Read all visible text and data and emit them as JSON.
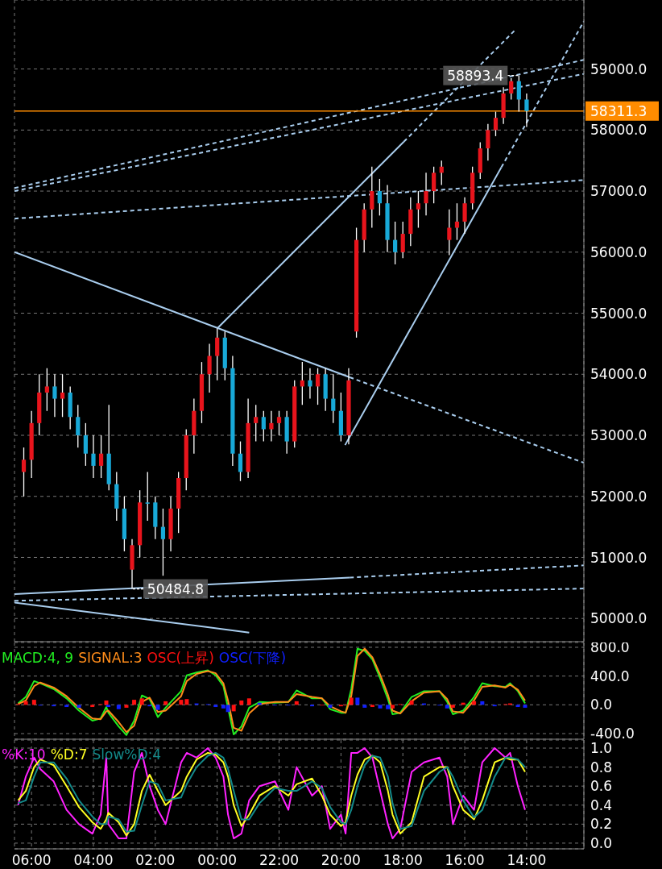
{
  "chart_data": [
    {
      "type": "candlestick",
      "x": [
        "--01-02T06:15",
        "--01-02T06:00",
        "--01-02T05:45",
        "--01-02T05:30",
        "--01-02T05:15",
        "--01-02T05:00",
        "--01-02T04:45",
        "--01-02T04:30",
        "--01-02T04:15",
        "--01-02T04:00",
        "--01-02T03:45",
        "--01-02T03:30",
        "--01-02T03:15",
        "--01-02T03:00",
        "--01-02T02:45",
        "--01-02T02:30",
        "--01-02T02:15",
        "--01-02T02:00",
        "--01-02T01:45",
        "--01-02T01:30",
        "--01-02T01:15",
        "--01-02T01:00",
        "--01-02T00:45",
        "--01-02T00:30",
        "--01-02T00:15",
        "--01-02T00:00",
        "--01-01T23:45",
        "--01-01T23:30",
        "--01-01T23:15",
        "--01-01T23:00",
        "--01-01T22:45",
        "--01-01T22:30",
        "--01-01T22:15",
        "--01-01T22:00",
        "--01-01T21:45",
        "--01-01T21:30",
        "--01-01T21:15",
        "--01-01T21:00",
        "--01-01T20:45",
        "--01-01T20:30",
        "--01-01T20:15",
        "--01-01T20:00",
        "--01-01T19:45",
        "--01-01T19:30",
        "--01-01T19:15",
        "--01-01T19:00",
        "--01-01T18:45",
        "--01-01T18:30",
        "--01-01T18:15",
        "--01-01T18:00",
        "--01-01T17:45",
        "--01-01T17:30",
        "--01-01T17:15",
        "--01-01T17:00",
        "--01-01T16:45",
        "--01-01T16:30",
        "--01-01T16:15",
        "--01-01T16:00",
        "--01-01T15:45",
        "--01-01T15:30",
        "--01-01T15:15",
        "--01-01T15:00",
        "--01-01T14:45",
        "--01-01T14:30",
        "--01-01T14:15",
        "--01-01T14:00"
      ],
      "ohlc": [
        [
          52400,
          52800,
          52000,
          52600
        ],
        [
          52600,
          53400,
          52300,
          53200
        ],
        [
          53200,
          54000,
          53000,
          53700
        ],
        [
          53700,
          54100,
          53400,
          53800
        ],
        [
          53800,
          54000,
          53300,
          53600
        ],
        [
          53600,
          54000,
          53300,
          53700
        ],
        [
          53700,
          53800,
          53100,
          53300
        ],
        [
          53300,
          53500,
          52800,
          53000
        ],
        [
          53000,
          53200,
          52500,
          52700
        ],
        [
          52700,
          53000,
          52300,
          52500
        ],
        [
          52500,
          53000,
          52300,
          52700
        ],
        [
          52700,
          53500,
          52100,
          52200
        ],
        [
          52200,
          52400,
          51600,
          51800
        ],
        [
          51800,
          52000,
          51100,
          51300
        ],
        [
          50800,
          51300,
          50484.8,
          51200
        ],
        [
          51200,
          52100,
          51000,
          51900
        ],
        [
          51900,
          52400,
          51600,
          51900
        ],
        [
          51900,
          52000,
          51300,
          51500
        ],
        [
          51500,
          51800,
          50700,
          51300
        ],
        [
          51300,
          52000,
          51100,
          51800
        ],
        [
          51800,
          52400,
          51400,
          52300
        ],
        [
          52300,
          53100,
          52100,
          53000
        ],
        [
          53000,
          53600,
          52700,
          53400
        ],
        [
          53400,
          54200,
          53200,
          54000
        ],
        [
          54000,
          54500,
          53700,
          54300
        ],
        [
          54300,
          54750,
          53900,
          54600
        ],
        [
          54600,
          54700,
          53900,
          54100
        ],
        [
          54100,
          54300,
          52500,
          52700
        ],
        [
          52700,
          52900,
          52250,
          52400
        ],
        [
          52400,
          53600,
          52300,
          53200
        ],
        [
          53200,
          53500,
          52900,
          53300
        ],
        [
          53300,
          53400,
          52900,
          53100
        ],
        [
          53100,
          53400,
          52900,
          53200
        ],
        [
          53200,
          53400,
          53000,
          53300
        ],
        [
          53300,
          53400,
          52700,
          52900
        ],
        [
          52900,
          53900,
          52800,
          53800
        ],
        [
          53800,
          54200,
          53500,
          53900
        ],
        [
          53900,
          54100,
          53600,
          53800
        ],
        [
          53800,
          54100,
          53500,
          54000
        ],
        [
          54000,
          54100,
          53400,
          53600
        ],
        [
          53600,
          54000,
          53200,
          53400
        ],
        [
          53400,
          53700,
          52900,
          53000
        ],
        [
          53000,
          54100,
          52850,
          53900
        ],
        [
          54700,
          56400,
          54600,
          56200
        ],
        [
          56200,
          56800,
          56000,
          56700
        ],
        [
          56700,
          57400,
          56400,
          57000
        ],
        [
          57000,
          57200,
          56600,
          56800
        ],
        [
          56800,
          57100,
          56000,
          56200
        ],
        [
          56200,
          56500,
          55800,
          56000
        ],
        [
          56000,
          56500,
          55900,
          56300
        ],
        [
          56300,
          56900,
          56100,
          56700
        ],
        [
          56700,
          57000,
          56400,
          56800
        ],
        [
          56800,
          57300,
          56600,
          57000
        ],
        [
          57000,
          57400,
          56800,
          57300
        ],
        [
          57300,
          57500,
          57100,
          57400
        ],
        [
          56200,
          56700,
          55950,
          56400
        ],
        [
          56400,
          56800,
          56200,
          56500
        ],
        [
          56500,
          56900,
          56300,
          56800
        ],
        [
          56800,
          57400,
          56700,
          57300
        ],
        [
          57300,
          57800,
          57200,
          57700
        ],
        [
          57700,
          58100,
          57500,
          58000
        ],
        [
          58000,
          58300,
          57900,
          58200
        ],
        [
          58200,
          58700,
          58100,
          58600
        ],
        [
          58600,
          58850,
          58500,
          58800
        ],
        [
          58800,
          58893.4,
          58300,
          58500
        ],
        [
          58500,
          58600,
          58050,
          58311.3
        ]
      ],
      "colors": [
        "#e8141c",
        "#e8141c",
        "#e8141c",
        "#e8141c",
        "#18a9d8",
        "#e8141c",
        "#18a9d8",
        "#18a9d8",
        "#18a9d8",
        "#18a9d8",
        "#e8141c",
        "#18a9d8",
        "#18a9d8",
        "#18a9d8",
        "#e8141c",
        "#e8141c",
        "#18a9d8",
        "#18a9d8",
        "#18a9d8",
        "#e8141c",
        "#e8141c",
        "#e8141c",
        "#e8141c",
        "#e8141c",
        "#e8141c",
        "#e8141c",
        "#18a9d8",
        "#18a9d8",
        "#18a9d8",
        "#e8141c",
        "#e8141c",
        "#18a9d8",
        "#e8141c",
        "#e8141c",
        "#18a9d8",
        "#e8141c",
        "#e8141c",
        "#18a9d8",
        "#e8141c",
        "#18a9d8",
        "#18a9d8",
        "#18a9d8",
        "#e8141c",
        "#e8141c",
        "#e8141c",
        "#e8141c",
        "#18a9d8",
        "#18a9d8",
        "#18a9d8",
        "#e8141c",
        "#e8141c",
        "#e8141c",
        "#e8141c",
        "#e8141c",
        "#e8141c",
        "#e8141c",
        "#e8141c",
        "#e8141c",
        "#e8141c",
        "#e8141c",
        "#e8141c",
        "#e8141c",
        "#e8141c",
        "#e8141c",
        "#18a9d8",
        "#18a9d8"
      ],
      "series": [
        {
          "type": "line",
          "color": "#a9cdee",
          "line_style": "solid",
          "x": [
            "--01-02T06:33",
            "--01-01T19:43"
          ],
          "values": [
            56000,
            53950
          ]
        },
        {
          "type": "line",
          "color": "#a9cdee",
          "line_style": "dashed",
          "x": [
            "--01-01T19:43",
            "--01-01T12:09"
          ],
          "values": [
            53950,
            52550
          ]
        },
        {
          "type": "line",
          "color": "#a9cdee",
          "line_style": "solid",
          "x": [
            "--01-02T00:00",
            "--01-01T17:58"
          ],
          "values": [
            54750,
            57810
          ]
        },
        {
          "type": "line",
          "color": "#a9cdee",
          "line_style": "dashed",
          "x": [
            "--01-01T17:58",
            "--01-01T14:21"
          ],
          "values": [
            57810,
            59650
          ]
        },
        {
          "type": "line",
          "color": "#a9cdee",
          "line_style": "solid",
          "x": [
            "--01-01T19:52",
            "--01-01T14:49"
          ],
          "values": [
            52840,
            57390
          ]
        },
        {
          "type": "line",
          "color": "#a9cdee",
          "line_style": "dashed",
          "x": [
            "--01-01T14:49",
            "--01-01T12:09"
          ],
          "values": [
            57390,
            59780
          ]
        },
        {
          "type": "line",
          "color": "#a9cdee",
          "line_style": "dashed",
          "x": [
            "--01-02T06:33",
            "--01-01T12:09"
          ],
          "values": [
            56550,
            57180
          ]
        },
        {
          "type": "line",
          "color": "#a9cdee",
          "line_style": "dashed",
          "x": [
            "--01-02T06:33",
            "--01-01T12:09"
          ],
          "values": [
            57050,
            59150
          ]
        },
        {
          "type": "line",
          "color": "#a9cdee",
          "line_style": "dashed",
          "x": [
            "--01-02T06:33",
            "--01-01T12:09"
          ],
          "values": [
            57000,
            58920
          ]
        },
        {
          "type": "line",
          "color": "#a9cdee",
          "line_style": "solid",
          "x": [
            "--01-02T06:33",
            "--01-01T19:43"
          ],
          "values": [
            50400,
            50670
          ]
        },
        {
          "type": "line",
          "color": "#a9cdee",
          "line_style": "dashed",
          "x": [
            "--01-01T19:43",
            "--01-01T12:09"
          ],
          "values": [
            50670,
            50870
          ]
        },
        {
          "type": "line",
          "color": "#a9cdee",
          "line_style": "dashed",
          "x": [
            "--01-02T06:33",
            "--01-01T12:09"
          ],
          "values": [
            50290,
            50490
          ]
        },
        {
          "type": "line",
          "color": "#a9cdee",
          "line_style": "solid",
          "x": [
            "--01-02T06:33",
            "--01-01T22:58"
          ],
          "values": [
            50260,
            49770
          ]
        }
      ],
      "ref_lines": [
        {
          "axis": "y",
          "value": 58311.3,
          "label": "58311.3",
          "color": "#ff8c00"
        }
      ],
      "annotations": [
        {
          "text": "58893.4",
          "x": "--01-01T14:15",
          "y": 58893.4
        },
        {
          "text": "50484.8",
          "x": "--01-02T02:45",
          "y": 50484.8
        }
      ],
      "xlim": [
        "--01-02T06:33",
        "--01-01T12:09"
      ],
      "xticks": [
        {
          "value": "--01-02T06:00",
          "label": null
        },
        {
          "value": "--01-02T04:00",
          "label": null
        },
        {
          "value": "--01-02T02:00",
          "label": null
        },
        {
          "value": "--01-02T00:00",
          "label": null
        },
        {
          "value": "--01-01T22:00",
          "label": null
        },
        {
          "value": "--01-01T20:00",
          "label": null
        },
        {
          "value": "--01-01T18:00",
          "label": null
        },
        {
          "value": "--01-01T16:00",
          "label": null
        },
        {
          "value": "--01-01T14:00",
          "label": null
        }
      ],
      "ylim": [
        49620,
        60130
      ],
      "yticks": [
        {
          "value": 50000,
          "label": "50000.0"
        },
        {
          "value": 51000,
          "label": "51000.0"
        },
        {
          "value": 52000,
          "label": "52000.0"
        },
        {
          "value": 53000,
          "label": "53000.0"
        },
        {
          "value": 54000,
          "label": "54000.0"
        },
        {
          "value": 55000,
          "label": "55000.0"
        },
        {
          "value": 56000,
          "label": "56000.0"
        },
        {
          "value": 57000,
          "label": "57000.0"
        },
        {
          "value": 58000,
          "label": "58000.0"
        },
        {
          "value": 59000,
          "label": "59000.0"
        }
      ],
      "grid": true,
      "tick_labels": "y"
    },
    {
      "type": "line",
      "x": [
        "--01-02T06:26",
        "--01-02T06:11",
        "--01-02T05:55",
        "--01-02T05:43",
        "--01-02T05:17",
        "--01-02T04:52",
        "--01-02T04:28",
        "--01-02T04:02",
        "--01-02T03:46",
        "--01-02T03:35",
        "--01-02T03:31",
        "--01-02T03:11",
        "--01-02T02:56",
        "--01-02T02:41",
        "--01-02T02:26",
        "--01-02T02:11",
        "--01-02T01:55",
        "--01-02T01:40",
        "--01-02T01:10",
        "--01-02T00:59",
        "--01-02T00:40",
        "--01-02T00:18",
        "--01-02T00:03",
        "--01-01T23:48",
        "--01-01T23:39",
        "--01-01T23:28",
        "--01-01T23:13",
        "--01-01T22:58",
        "--01-01T22:38",
        "--01-01T22:08",
        "--01-01T21:42",
        "--01-01T21:26",
        "--01-01T20:56",
        "--01-01T20:37",
        "--01-01T20:21",
        "--01-01T20:00",
        "--01-01T19:51",
        "--01-01T19:40",
        "--01-01T19:28",
        "--01-01T19:14",
        "--01-01T18:59",
        "--01-01T18:44",
        "--01-01T18:29",
        "--01-01T18:20",
        "--01-01T18:05",
        "--01-01T17:43",
        "--01-01T17:19",
        "--01-01T16:49",
        "--01-01T16:34",
        "--01-01T16:23",
        "--01-01T16:03",
        "--01-01T15:42",
        "--01-01T15:26",
        "--01-01T15:02",
        "--01-01T14:41",
        "--01-01T14:32",
        "--01-01T14:17",
        "--01-01T14:03"
      ],
      "series": [
        {
          "name": "MACD:4, 9",
          "color": "#22ee22",
          "values": [
            20,
            110,
            330,
            300,
            220,
            90,
            -80,
            -220,
            -190,
            -30,
            -110,
            -300,
            -420,
            -220,
            130,
            80,
            -170,
            -40,
            190,
            410,
            450,
            480,
            410,
            260,
            -40,
            -410,
            -300,
            -40,
            40,
            30,
            40,
            200,
            90,
            90,
            -60,
            -110,
            -110,
            220,
            780,
            750,
            630,
            370,
            80,
            -130,
            -110,
            110,
            190,
            190,
            40,
            -130,
            -80,
            110,
            300,
            260,
            250,
            300,
            190,
            20
          ]
        },
        {
          "name": "SIGNAL:3",
          "color": "#ff8c1a",
          "values": [
            10,
            60,
            260,
            310,
            240,
            120,
            -40,
            -190,
            -200,
            -90,
            -80,
            -240,
            -380,
            -290,
            40,
            100,
            -100,
            -80,
            120,
            330,
            430,
            470,
            440,
            300,
            60,
            -320,
            -360,
            -120,
            10,
            40,
            40,
            150,
            110,
            90,
            -20,
            -90,
            -110,
            120,
            680,
            780,
            660,
            420,
            140,
            -80,
            -120,
            50,
            170,
            190,
            80,
            -90,
            -110,
            60,
            250,
            270,
            240,
            280,
            210,
            60
          ]
        },
        {
          "name": "OSC(上昇)",
          "type": "bar",
          "color": "#ff1010",
          "values": [
            10,
            50,
            70,
            null,
            null,
            null,
            null,
            -30,
            10,
            60,
            null,
            null,
            -40,
            70,
            90,
            null,
            null,
            50,
            70,
            80,
            null,
            null,
            null,
            null,
            null,
            -90,
            60,
            90,
            null,
            null,
            null,
            50,
            null,
            0,
            null,
            -20,
            0,
            100,
            null,
            null,
            -30,
            null,
            null,
            -50,
            10,
            60,
            null,
            null,
            null,
            -40,
            30,
            50,
            null,
            null,
            10,
            20,
            null,
            null
          ]
        },
        {
          "name": "OSC(下降)",
          "type": "bar",
          "color": "#1020ff",
          "values": [
            null,
            null,
            null,
            -10,
            -20,
            -30,
            -40,
            null,
            null,
            null,
            -30,
            -60,
            null,
            null,
            null,
            -20,
            -70,
            null,
            null,
            null,
            20,
            10,
            -30,
            -50,
            -100,
            null,
            null,
            null,
            30,
            0,
            0,
            null,
            -20,
            null,
            -40,
            null,
            null,
            null,
            100,
            -40,
            null,
            -50,
            -60,
            null,
            null,
            null,
            20,
            -10,
            -50,
            null,
            null,
            null,
            50,
            -20,
            null,
            null,
            -30,
            -40
          ]
        }
      ],
      "xlim": [
        "--01-02T06:33",
        "--01-01T12:09"
      ],
      "xticks": [
        {
          "value": "--01-02T06:00",
          "label": null
        },
        {
          "value": "--01-02T04:00",
          "label": null
        },
        {
          "value": "--01-02T02:00",
          "label": null
        },
        {
          "value": "--01-02T00:00",
          "label": null
        },
        {
          "value": "--01-01T22:00",
          "label": null
        },
        {
          "value": "--01-01T20:00",
          "label": null
        },
        {
          "value": "--01-01T18:00",
          "label": null
        },
        {
          "value": "--01-01T16:00",
          "label": null
        },
        {
          "value": "--01-01T14:00",
          "label": null
        }
      ],
      "ylim": [
        -478,
        867
      ],
      "yticks": [
        {
          "value": -400,
          "label": "-400.0"
        },
        {
          "value": 0,
          "label": "0.0"
        },
        {
          "value": 400,
          "label": "400.0"
        },
        {
          "value": 800,
          "label": "800.0"
        }
      ],
      "grid": true,
      "legend": "top left",
      "tick_labels": "y"
    },
    {
      "type": "line",
      "x": [
        "--01-02T06:26",
        "--01-02T06:11",
        "--01-02T05:55",
        "--01-02T05:43",
        "--01-02T05:17",
        "--01-02T04:52",
        "--01-02T04:28",
        "--01-02T04:02",
        "--01-02T03:46",
        "--01-02T03:35",
        "--01-02T03:31",
        "--01-02T03:11",
        "--01-02T02:56",
        "--01-02T02:41",
        "--01-02T02:26",
        "--01-02T02:11",
        "--01-02T01:55",
        "--01-02T01:40",
        "--01-02T01:10",
        "--01-02T00:59",
        "--01-02T00:40",
        "--01-02T00:18",
        "--01-02T00:03",
        "--01-01T23:48",
        "--01-01T23:39",
        "--01-01T23:28",
        "--01-01T23:13",
        "--01-01T22:58",
        "--01-01T22:38",
        "--01-01T22:08",
        "--01-01T21:42",
        "--01-01T21:26",
        "--01-01T20:56",
        "--01-01T20:37",
        "--01-01T20:21",
        "--01-01T20:00",
        "--01-01T19:51",
        "--01-01T19:40",
        "--01-01T19:28",
        "--01-01T19:14",
        "--01-01T18:59",
        "--01-01T18:44",
        "--01-01T18:29",
        "--01-01T18:20",
        "--01-01T18:05",
        "--01-01T17:43",
        "--01-01T17:19",
        "--01-01T16:49",
        "--01-01T16:34",
        "--01-01T16:23",
        "--01-01T16:03",
        "--01-01T15:42",
        "--01-01T15:26",
        "--01-01T15:02",
        "--01-01T14:41",
        "--01-01T14:32",
        "--01-01T14:17",
        "--01-01T14:03"
      ],
      "series": [
        {
          "name": "%K:10",
          "color": "#ff22ff",
          "values": [
            0.4,
            0.7,
            0.9,
            0.78,
            0.65,
            0.35,
            0.2,
            0.1,
            0.3,
            0.9,
            0.2,
            0.05,
            0.05,
            0.75,
            0.95,
            0.6,
            0.35,
            0.2,
            0.85,
            0.95,
            0.9,
            1.0,
            0.9,
            0.7,
            0.3,
            0.05,
            0.1,
            0.45,
            0.6,
            0.65,
            0.35,
            0.8,
            0.5,
            0.6,
            0.15,
            0.3,
            0.1,
            0.95,
            0.95,
            1.0,
            0.9,
            0.55,
            0.2,
            0.05,
            0.15,
            0.75,
            0.85,
            0.9,
            0.7,
            0.2,
            0.5,
            0.35,
            0.85,
            1.0,
            0.9,
            0.95,
            0.6,
            0.35
          ]
        },
        {
          "name": "%D:7",
          "color": "#ffff22",
          "values": [
            0.45,
            0.55,
            0.8,
            0.88,
            0.82,
            0.6,
            0.38,
            0.22,
            0.15,
            0.25,
            0.32,
            0.22,
            0.08,
            0.2,
            0.55,
            0.72,
            0.55,
            0.4,
            0.55,
            0.7,
            0.88,
            0.95,
            0.93,
            0.85,
            0.7,
            0.4,
            0.18,
            0.3,
            0.5,
            0.6,
            0.5,
            0.62,
            0.68,
            0.5,
            0.3,
            0.18,
            0.22,
            0.5,
            0.72,
            0.88,
            0.92,
            0.85,
            0.55,
            0.3,
            0.1,
            0.22,
            0.7,
            0.8,
            0.8,
            0.6,
            0.35,
            0.25,
            0.45,
            0.85,
            0.9,
            0.88,
            0.88,
            0.75
          ]
        },
        {
          "name": "Slow%D:4",
          "color": "#138a8a",
          "values": [
            0.42,
            0.45,
            0.7,
            0.85,
            0.85,
            0.68,
            0.45,
            0.28,
            0.2,
            0.2,
            0.28,
            0.25,
            0.12,
            0.13,
            0.4,
            0.65,
            0.62,
            0.45,
            0.48,
            0.62,
            0.8,
            0.92,
            0.95,
            0.9,
            0.78,
            0.55,
            0.25,
            0.25,
            0.42,
            0.58,
            0.55,
            0.55,
            0.65,
            0.58,
            0.38,
            0.22,
            0.2,
            0.35,
            0.6,
            0.82,
            0.92,
            0.9,
            0.7,
            0.42,
            0.15,
            0.18,
            0.55,
            0.75,
            0.8,
            0.7,
            0.45,
            0.27,
            0.35,
            0.7,
            0.9,
            0.9,
            0.88,
            0.8
          ]
        }
      ],
      "xlim": [
        "--01-02T06:33",
        "--01-01T12:09"
      ],
      "xticks": [
        {
          "value": "--01-02T06:00",
          "label": "06:00"
        },
        {
          "value": "--01-02T04:00",
          "label": "04:00"
        },
        {
          "value": "--01-02T02:00",
          "label": "02:00"
        },
        {
          "value": "--01-02T00:00",
          "label": "00:00"
        },
        {
          "value": "--01-01T22:00",
          "label": "22:00"
        },
        {
          "value": "--01-01T20:00",
          "label": "20:00"
        },
        {
          "value": "--01-01T18:00",
          "label": "18:00"
        },
        {
          "value": "--01-01T16:00",
          "label": "16:00"
        },
        {
          "value": "--01-01T14:00",
          "label": "14:00"
        }
      ],
      "ylim": [
        -0.06,
        1.085
      ],
      "yticks": [
        {
          "value": 0,
          "label": "0.0"
        },
        {
          "value": 0.2,
          "label": "0.2"
        },
        {
          "value": 0.4,
          "label": "0.4"
        },
        {
          "value": 0.6,
          "label": "0.6"
        },
        {
          "value": 0.8,
          "label": "0.8"
        },
        {
          "value": 1.0,
          "label": "1.0"
        }
      ],
      "grid": true,
      "legend": "top left"
    }
  ]
}
